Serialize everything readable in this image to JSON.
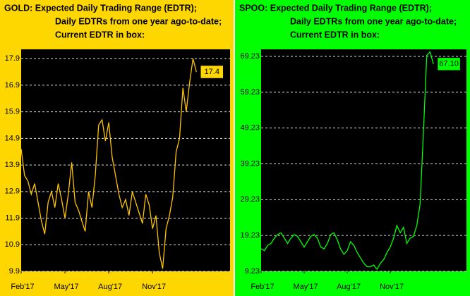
{
  "chart_data": [
    {
      "type": "line",
      "title": [
        "GOLD:  Expected Daily Trading Range (EDTR);",
        "Daily EDTRs from one year ago-to-date;",
        "Current EDTR in box:"
      ],
      "background": "#ffd700",
      "color": "#ffc400",
      "box_color": "#ffd700",
      "values": [
        14.5,
        13.5,
        13.3,
        12.8,
        13.2,
        12.5,
        11.8,
        11.3,
        12.5,
        12.9,
        12.3,
        13.2,
        12.6,
        11.9,
        12.8,
        14.0,
        12.5,
        12.2,
        11.8,
        11.4,
        12.9,
        12.3,
        13.5,
        15.4,
        15.6,
        14.8,
        15.5,
        14.2,
        13.5,
        12.8,
        12.3,
        12.6,
        12.0,
        12.9,
        12.5,
        12.1,
        11.7,
        12.8,
        12.4,
        11.5,
        12.0,
        10.6,
        10.0,
        11.5,
        12.0,
        12.7,
        14.4,
        14.9,
        16.8,
        15.9,
        17.0,
        17.9,
        17.4
      ],
      "current": 17.4,
      "current_label": "17.4",
      "xlim": [
        0,
        62
      ],
      "xticks": [
        {
          "value": 0,
          "label": "Feb'17"
        },
        {
          "value": 13,
          "label": "May'17"
        },
        {
          "value": 26,
          "label": "Aug'17"
        },
        {
          "value": 39,
          "label": "Nov'17"
        }
      ],
      "ylim": [
        9.9,
        18.25
      ],
      "yticks": [
        9.9,
        10.9,
        11.9,
        12.9,
        13.9,
        14.9,
        15.9,
        16.9,
        17.9
      ],
      "grid": true
    },
    {
      "type": "line",
      "title": [
        "SPOO:  Expected Daily Trading Range (EDTR);",
        "Daily EDTRs from one year ago-to-date;",
        "Current EDTR in box:"
      ],
      "background": "#00ff00",
      "color": "#00ff00",
      "box_color": "#00ff00",
      "values": [
        15.5,
        15.0,
        16.5,
        17.0,
        18.5,
        19.5,
        20.0,
        18.5,
        17.0,
        18.5,
        19.5,
        19.0,
        17.5,
        16.0,
        17.5,
        19.0,
        19.5,
        18.5,
        16.0,
        15.5,
        17.0,
        19.5,
        20.0,
        18.0,
        15.5,
        14.0,
        15.0,
        17.5,
        16.5,
        14.5,
        13.0,
        11.5,
        10.5,
        10.5,
        11.0,
        9.8,
        11.5,
        12.5,
        14.5,
        16.0,
        18.5,
        22.0,
        20.0,
        21.5,
        17.0,
        18.5,
        19.0,
        22.0,
        28.0,
        48.0,
        69.5,
        70.5,
        67.1
      ],
      "current": 67.1,
      "current_label": "67.10",
      "xlim": [
        0,
        62
      ],
      "xticks": [
        {
          "value": 0,
          "label": "Feb'17"
        },
        {
          "value": 13,
          "label": "May'17"
        },
        {
          "value": 26,
          "label": "Aug'17"
        },
        {
          "value": 39,
          "label": "Nov'17"
        }
      ],
      "ylim": [
        9.23,
        71.2
      ],
      "yticks": [
        9.23,
        19.23,
        29.23,
        39.23,
        49.23,
        59.23,
        69.23
      ],
      "grid": true
    }
  ]
}
